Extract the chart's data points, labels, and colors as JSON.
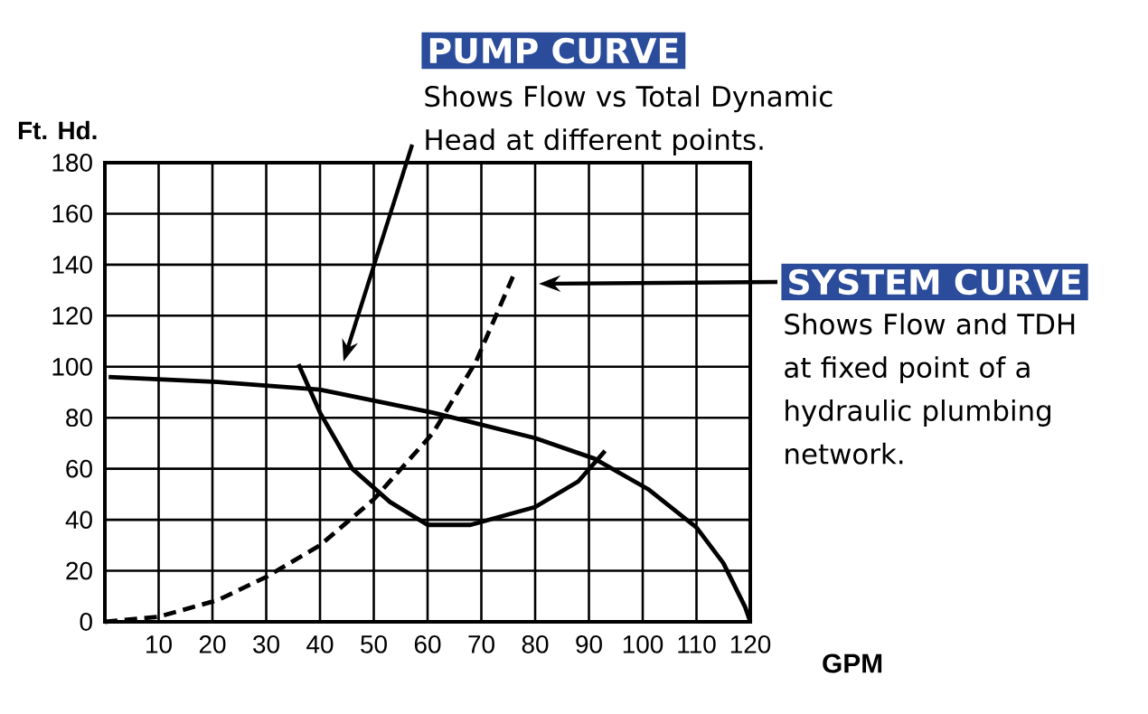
{
  "chart_data": {
    "type": "line",
    "xlabel": "GPM",
    "ylabel": "Ft. Hd.",
    "xlim": [
      0,
      120
    ],
    "ylim": [
      0,
      180
    ],
    "xticks": [
      10,
      20,
      30,
      40,
      50,
      60,
      70,
      80,
      90,
      100,
      110,
      120
    ],
    "yticks": [
      0,
      20,
      40,
      60,
      80,
      100,
      120,
      140,
      160,
      180
    ],
    "grid": true,
    "series": [
      {
        "color": "#000000",
        "line_style": "solid",
        "x": [
          0.7,
          21,
          40,
          61,
          80,
          91,
          101,
          110,
          115,
          119,
          120
        ],
        "values": [
          96,
          94,
          91,
          82,
          72,
          64,
          52,
          37,
          23,
          6,
          0
        ]
      },
      {
        "color": "#000000",
        "line_style": "dashed",
        "x": [
          0,
          10,
          21,
          30,
          40,
          50,
          61,
          69,
          76
        ],
        "values": [
          0,
          2,
          8.5,
          17.6,
          30,
          48,
          74,
          102,
          136
        ]
      },
      {
        "color": "#000000",
        "line_style": "solid",
        "x": [
          36,
          40,
          46,
          53,
          60,
          68,
          80,
          88,
          93
        ],
        "values": [
          101,
          82,
          60,
          47,
          38,
          38,
          45,
          55,
          67
        ]
      }
    ],
    "annotations": [
      "PUMP CURVE",
      "Shows Flow vs Total Dynamic Head at different points.",
      "SYSTEM CURVE",
      "Shows Flow and TDH at fixed point of a hydraulic plumbing network."
    ]
  }
}
